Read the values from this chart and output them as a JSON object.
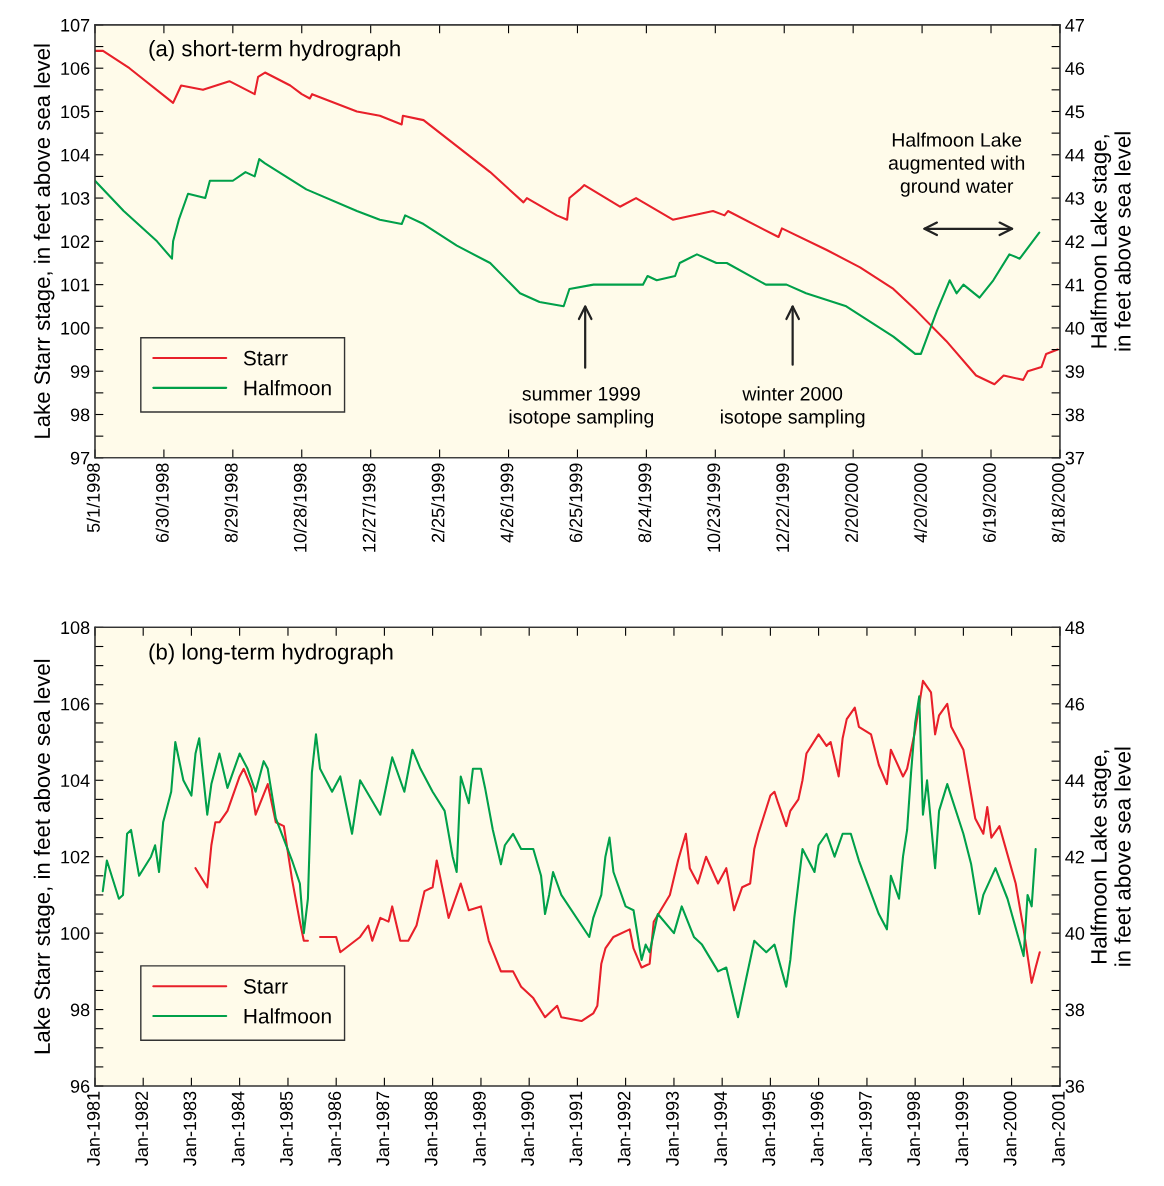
{
  "chart_data": [
    {
      "type": "line",
      "title": "(a) short-term hydrograph",
      "ylabel": "Lake Starr stage, in feet above sea level",
      "y2label": "Halfmoon Lake stage,\nin feet above sea level",
      "legend": "bottom left",
      "xlim": [
        "1998-05-01",
        "2000-08-18"
      ],
      "xticks": [
        {
          "value": "1998-05-01",
          "label": "5/1/1998"
        },
        {
          "value": "1998-06-30",
          "label": "6/30/1998"
        },
        {
          "value": "1998-08-29",
          "label": "8/29/1998"
        },
        {
          "value": "1998-10-28",
          "label": "10/28/1998"
        },
        {
          "value": "1998-12-27",
          "label": "12/27/1998"
        },
        {
          "value": "1999-02-25",
          "label": "2/25/1999"
        },
        {
          "value": "1999-04-26",
          "label": "4/26/1999"
        },
        {
          "value": "1999-06-25",
          "label": "6/25/1999"
        },
        {
          "value": "1999-08-24",
          "label": "8/24/1999"
        },
        {
          "value": "1999-10-23",
          "label": "10/23/1999"
        },
        {
          "value": "1999-12-22",
          "label": "12/22/1999"
        },
        {
          "value": "2000-02-20",
          "label": "2/20/2000"
        },
        {
          "value": "2000-04-20",
          "label": "4/20/2000"
        },
        {
          "value": "2000-06-19",
          "label": "6/19/2000"
        },
        {
          "value": "2000-08-18",
          "label": "8/18/2000"
        }
      ],
      "ylim": [
        97,
        107
      ],
      "yticks": [
        97,
        {
          "value": 97.5,
          "label": null
        },
        98,
        {
          "value": 98.5,
          "label": null
        },
        99,
        {
          "value": 99.5,
          "label": null
        },
        100,
        {
          "value": 100.5,
          "label": null
        },
        101,
        {
          "value": 101.5,
          "label": null
        },
        102,
        {
          "value": 102.5,
          "label": null
        },
        103,
        {
          "value": 103.5,
          "label": null
        },
        104,
        {
          "value": 104.5,
          "label": null
        },
        105,
        {
          "value": 105.5,
          "label": null
        },
        106,
        {
          "value": 106.5,
          "label": null
        },
        107
      ],
      "y2lim": [
        37,
        47
      ],
      "y2ticks": [
        37,
        {
          "value": 37.5,
          "label": null
        },
        38,
        {
          "value": 38.5,
          "label": null
        },
        39,
        {
          "value": 39.5,
          "label": null
        },
        40,
        {
          "value": 40.5,
          "label": null
        },
        41,
        {
          "value": 41.5,
          "label": null
        },
        42,
        {
          "value": 42.5,
          "label": null
        },
        43,
        {
          "value": 43.5,
          "label": null
        },
        44,
        {
          "value": 44.5,
          "label": null
        },
        45,
        {
          "value": 45.5,
          "label": null
        },
        46,
        {
          "value": 46.5,
          "label": null
        },
        47
      ],
      "series": [
        {
          "name": "Starr",
          "color": "#e8202a",
          "x": [
            "1998-05-01",
            "1998-05-08",
            "1998-05-31",
            "1998-07-08",
            "1998-07-15",
            "1998-08-03",
            "1998-08-26",
            "1998-09-17",
            "1998-09-20",
            "1998-09-26",
            "1998-10-18",
            "1998-10-28",
            "1998-11-04",
            "1998-11-06",
            "1998-12-15",
            "1999-01-04",
            "1999-01-23",
            "1999-01-24",
            "1999-02-11",
            "1999-03-12",
            "1999-04-10",
            "1999-05-09",
            "1999-05-12",
            "1999-06-07",
            "1999-06-16",
            "1999-06-18",
            "1999-06-27",
            "1999-07-01",
            "1999-08-01",
            "1999-08-15",
            "1999-09-16",
            "1999-10-21",
            "1999-10-31",
            "1999-11-03",
            "1999-12-17",
            "1999-12-20",
            "2000-01-28",
            "2000-02-26",
            "2000-03-26",
            "2000-04-15",
            "2000-05-11",
            "2000-06-06",
            "2000-06-22",
            "2000-06-30",
            "2000-07-17",
            "2000-07-21",
            "2000-08-02",
            "2000-08-06",
            "2000-08-16"
          ],
          "values": [
            106.4,
            106.4,
            106.0,
            105.2,
            105.6,
            105.5,
            105.7,
            105.4,
            105.8,
            105.9,
            105.6,
            105.4,
            105.3,
            105.4,
            105.0,
            104.9,
            104.7,
            104.9,
            104.8,
            104.2,
            103.6,
            102.9,
            103.0,
            102.6,
            102.5,
            103.0,
            103.2,
            103.3,
            102.8,
            103.0,
            102.5,
            102.7,
            102.6,
            102.7,
            102.1,
            102.3,
            101.8,
            101.4,
            100.9,
            100.4,
            99.7,
            98.9,
            98.7,
            98.9,
            98.8,
            99.0,
            99.1,
            99.4,
            99.5
          ]
        },
        {
          "name": "Halfmoon",
          "color": "#00a04a",
          "axis": "y2",
          "x": [
            "1998-05-01",
            "1998-05-26",
            "1998-06-24",
            "1998-07-07",
            "1998-07-08",
            "1998-07-13",
            "1998-07-21",
            "1998-08-05",
            "1998-08-09",
            "1998-08-29",
            "1998-09-09",
            "1998-09-17",
            "1998-09-21",
            "1998-09-26",
            "1998-11-01",
            "1998-12-15",
            "1999-01-04",
            "1999-01-23",
            "1999-01-26",
            "1999-02-11",
            "1999-03-12",
            "1999-04-10",
            "1999-05-06",
            "1999-05-23",
            "1999-06-13",
            "1999-06-18",
            "1999-07-09",
            "1999-08-02",
            "1999-08-21",
            "1999-08-25",
            "1999-09-02",
            "1999-09-18",
            "1999-09-22",
            "1999-10-07",
            "1999-10-24",
            "1999-11-02",
            "1999-12-06",
            "1999-12-24",
            "2000-01-10",
            "2000-02-14",
            "2000-03-26",
            "2000-04-14",
            "2000-04-19",
            "2000-05-03",
            "2000-05-14",
            "2000-05-20",
            "2000-05-26",
            "2000-06-09",
            "2000-06-21",
            "2000-07-05",
            "2000-07-14",
            "2000-07-31"
          ],
          "values": [
            43.4,
            42.7,
            42.0,
            41.6,
            42.0,
            42.5,
            43.1,
            43.0,
            43.4,
            43.4,
            43.6,
            43.5,
            43.9,
            43.8,
            43.2,
            42.7,
            42.5,
            42.4,
            42.6,
            42.4,
            41.9,
            41.5,
            40.8,
            40.6,
            40.5,
            40.9,
            41.0,
            41.0,
            41.0,
            41.2,
            41.1,
            41.2,
            41.5,
            41.7,
            41.5,
            41.5,
            41.0,
            41.0,
            40.8,
            40.5,
            39.8,
            39.4,
            39.4,
            40.4,
            41.1,
            40.8,
            41.0,
            40.7,
            41.1,
            41.7,
            41.6,
            42.2
          ]
        }
      ],
      "annotations": [
        "summer 1999\nisotope sampling",
        "winter 2000\nisotope sampling",
        "Halfmoon Lake\naugmented with\nground water"
      ]
    },
    {
      "type": "line",
      "title": "(b) long-term hydrograph",
      "ylabel": "Lake Starr stage, in feet above sea level",
      "y2label": "Halfmoon Lake stage,\nin feet above sea level",
      "legend": "bottom left",
      "xlim": [
        "1981-01",
        "2001-01"
      ],
      "xticks": [
        {
          "value": "1981-01",
          "label": "Jan-1981"
        },
        {
          "value": "1982-01",
          "label": "Jan-1982"
        },
        {
          "value": "1983-01",
          "label": "Jan-1983"
        },
        {
          "value": "1984-01",
          "label": "Jan-1984"
        },
        {
          "value": "1985-01",
          "label": "Jan-1985"
        },
        {
          "value": "1986-01",
          "label": "Jan-1986"
        },
        {
          "value": "1987-01",
          "label": "Jan-1987"
        },
        {
          "value": "1988-01",
          "label": "Jan-1988"
        },
        {
          "value": "1989-01",
          "label": "Jan-1989"
        },
        {
          "value": "1990-01",
          "label": "Jan-1990"
        },
        {
          "value": "1991-01",
          "label": "Jan-1991"
        },
        {
          "value": "1992-01",
          "label": "Jan-1992"
        },
        {
          "value": "1993-01",
          "label": "Jan-1993"
        },
        {
          "value": "1994-01",
          "label": "Jan-1994"
        },
        {
          "value": "1995-01",
          "label": "Jan-1995"
        },
        {
          "value": "1996-01",
          "label": "Jan-1996"
        },
        {
          "value": "1997-01",
          "label": "Jan-1997"
        },
        {
          "value": "1998-01",
          "label": "Jan-1998"
        },
        {
          "value": "1999-01",
          "label": "Jan-1999"
        },
        {
          "value": "2000-01",
          "label": "Jan-2000"
        },
        {
          "value": "2001-01",
          "label": "Jan-2001"
        }
      ],
      "ylim": [
        96,
        108
      ],
      "yticks": [
        96,
        {
          "value": 96.5,
          "label": null
        },
        {
          "value": 97,
          "label": null
        },
        {
          "value": 97.5,
          "label": null
        },
        98,
        {
          "value": 98.5,
          "label": null
        },
        {
          "value": 99,
          "label": null
        },
        {
          "value": 99.5,
          "label": null
        },
        100,
        {
          "value": 100.5,
          "label": null
        },
        {
          "value": 101,
          "label": null
        },
        {
          "value": 101.5,
          "label": null
        },
        102,
        {
          "value": 102.5,
          "label": null
        },
        {
          "value": 103,
          "label": null
        },
        {
          "value": 103.5,
          "label": null
        },
        104,
        {
          "value": 104.5,
          "label": null
        },
        {
          "value": 105,
          "label": null
        },
        {
          "value": 105.5,
          "label": null
        },
        106,
        {
          "value": 106.5,
          "label": null
        },
        {
          "value": 107,
          "label": null
        },
        {
          "value": 107.5,
          "label": null
        },
        108
      ],
      "y2lim": [
        36,
        48
      ],
      "y2ticks": [
        36,
        {
          "value": 36.5,
          "label": null
        },
        {
          "value": 37,
          "label": null
        },
        {
          "value": 37.5,
          "label": null
        },
        38,
        {
          "value": 38.5,
          "label": null
        },
        {
          "value": 39,
          "label": null
        },
        {
          "value": 39.5,
          "label": null
        },
        40,
        {
          "value": 40.5,
          "label": null
        },
        {
          "value": 41,
          "label": null
        },
        {
          "value": 41.5,
          "label": null
        },
        42,
        {
          "value": 42.5,
          "label": null
        },
        {
          "value": 43,
          "label": null
        },
        {
          "value": 43.5,
          "label": null
        },
        44,
        {
          "value": 44.5,
          "label": null
        },
        {
          "value": 45,
          "label": null
        },
        {
          "value": 45.5,
          "label": null
        },
        46,
        {
          "value": 46.5,
          "label": null
        },
        {
          "value": 47,
          "label": null
        },
        {
          "value": 47.5,
          "label": null
        },
        48
      ],
      "series": [
        {
          "name": "Starr",
          "color": "#e8202a",
          "x": [
            "1983-02",
            "1983-05",
            "1983-06",
            "1983-07",
            "1983-08",
            "1983-10",
            "1984-01",
            "1984-02",
            "1984-04",
            "1984-05",
            "1984-08",
            "1984-10",
            "1984-12",
            "1985-02",
            "1985-04",
            "1985-05",
            "1985-06",
            "1985-07",
            "1985-09",
            "1986-01",
            "1986-02",
            "1986-07",
            "1986-09",
            "1986-10",
            "1986-12",
            "1987-02",
            "1987-03",
            "1987-05",
            "1987-07",
            "1987-09",
            "1987-11",
            "1988-01",
            "1988-02",
            "1988-05",
            "1988-06",
            "1988-08",
            "1988-10",
            "1989-01",
            "1989-03",
            "1989-06",
            "1989-09",
            "1989-11",
            "1990-02",
            "1990-05",
            "1990-08",
            "1990-09",
            "1991-02",
            "1991-05",
            "1991-06",
            "1991-07",
            "1991-08",
            "1991-10",
            "1992-02",
            "1992-03",
            "1992-05",
            "1992-07",
            "1992-08",
            "1992-12",
            "1993-02",
            "1993-04",
            "1993-05",
            "1993-07",
            "1993-09",
            "1993-12",
            "1994-02",
            "1994-04",
            "1994-06",
            "1994-08",
            "1994-09",
            "1994-10",
            "1995-01",
            "1995-02",
            "1995-03",
            "1995-05",
            "1995-06",
            "1995-08",
            "1995-09",
            "1995-10",
            "1996-01",
            "1996-03",
            "1996-04",
            "1996-06",
            "1996-07",
            "1996-08",
            "1996-10",
            "1996-11",
            "1997-02",
            "1997-04",
            "1997-06",
            "1997-07",
            "1997-10",
            "1997-11",
            "1998-01",
            "1998-03",
            "1998-05",
            "1998-06",
            "1998-07",
            "1998-09",
            "1998-10",
            "1999-01",
            "1999-04",
            "1999-06",
            "1999-07",
            "1999-08",
            "1999-10",
            "2000-02",
            "2000-04",
            "2000-06",
            "2000-07",
            "2000-08"
          ],
          "values": [
            101.7,
            101.2,
            102.3,
            102.9,
            102.9,
            103.2,
            104.1,
            104.3,
            103.8,
            103.1,
            103.9,
            102.9,
            102.8,
            101.4,
            100.3,
            99.8,
            99.8,
            null,
            99.9,
            99.9,
            99.5,
            99.9,
            100.2,
            99.8,
            100.4,
            100.3,
            100.7,
            99.8,
            99.8,
            100.2,
            101.1,
            101.2,
            101.9,
            100.4,
            100.7,
            101.3,
            100.6,
            100.7,
            99.8,
            99.0,
            99.0,
            98.6,
            98.3,
            97.8,
            98.1,
            97.8,
            97.7,
            97.9,
            98.1,
            99.2,
            99.6,
            99.9,
            100.1,
            99.6,
            99.1,
            99.2,
            100.3,
            101.0,
            101.9,
            102.6,
            101.7,
            101.3,
            102.0,
            101.3,
            101.7,
            100.6,
            101.2,
            101.3,
            102.2,
            102.6,
            103.6,
            103.7,
            103.4,
            102.8,
            103.2,
            103.5,
            104.0,
            104.7,
            105.2,
            104.9,
            105.0,
            104.1,
            105.1,
            105.6,
            105.9,
            105.4,
            105.2,
            104.4,
            103.9,
            104.8,
            104.1,
            104.3,
            105.3,
            106.6,
            106.3,
            105.2,
            105.7,
            106.0,
            105.4,
            104.8,
            103.0,
            102.6,
            103.3,
            102.5,
            102.8,
            101.3,
            100.1,
            98.7,
            99.1,
            99.5
          ]
        },
        {
          "name": "Halfmoon",
          "color": "#00a04a",
          "axis": "y2",
          "x": [
            "1981-03",
            "1981-04",
            "1981-07",
            "1981-08",
            "1981-09",
            "1981-10",
            "1981-12",
            "1982-03",
            "1982-04",
            "1982-05",
            "1982-06",
            "1982-08",
            "1982-09",
            "1982-11",
            "1983-01",
            "1983-02",
            "1983-03",
            "1983-05",
            "1983-06",
            "1983-08",
            "1983-10",
            "1984-01",
            "1984-03",
            "1984-05",
            "1984-07",
            "1984-08",
            "1984-10",
            "1985-02",
            "1985-04",
            "1985-05",
            "1985-06",
            "1985-07",
            "1985-08",
            "1985-09",
            "1985-12",
            "1986-02",
            "1986-05",
            "1986-07",
            "1986-12",
            "1987-03",
            "1987-06",
            "1987-08",
            "1987-10",
            "1988-01",
            "1988-04",
            "1988-06",
            "1988-07",
            "1988-08",
            "1988-10",
            "1988-11",
            "1989-01",
            "1989-02",
            "1989-04",
            "1989-06",
            "1989-07",
            "1989-09",
            "1989-11",
            "1990-02",
            "1990-04",
            "1990-05",
            "1990-06",
            "1990-07",
            "1990-09",
            "1991-04",
            "1991-05",
            "1991-07",
            "1991-08",
            "1991-09",
            "1991-10",
            "1992-01",
            "1992-03",
            "1992-05",
            "1992-06",
            "1992-07",
            "1992-09",
            "1993-01",
            "1993-03",
            "1993-06",
            "1993-08",
            "1993-12",
            "1994-02",
            "1994-05",
            "1994-07",
            "1994-09",
            "1994-12",
            "1995-02",
            "1995-05",
            "1995-06",
            "1995-07",
            "1995-09",
            "1995-12",
            "1996-01",
            "1996-03",
            "1996-05",
            "1996-07",
            "1996-09",
            "1996-11",
            "1997-04",
            "1997-06",
            "1997-07",
            "1997-09",
            "1997-10",
            "1997-11",
            "1997-12",
            "1998-01",
            "1998-02",
            "1998-03",
            "1998-04",
            "1998-06",
            "1998-07",
            "1998-09",
            "1999-01",
            "1999-03",
            "1999-05",
            "1999-06",
            "1999-09",
            "1999-12",
            "2000-04",
            "2000-05",
            "2000-06",
            "2000-07"
          ],
          "values": [
            41.1,
            41.9,
            40.9,
            41.0,
            42.6,
            42.7,
            41.5,
            42.0,
            42.3,
            41.6,
            42.9,
            43.7,
            45.0,
            44.0,
            43.6,
            44.7,
            45.1,
            43.1,
            43.9,
            44.7,
            43.8,
            44.7,
            44.3,
            43.7,
            44.5,
            44.3,
            43.0,
            41.9,
            41.3,
            40.0,
            40.9,
            44.2,
            45.2,
            44.3,
            43.7,
            44.1,
            42.6,
            44.0,
            43.1,
            44.6,
            43.7,
            44.8,
            44.3,
            43.7,
            43.2,
            42.0,
            41.6,
            44.1,
            43.4,
            44.3,
            44.3,
            43.8,
            42.7,
            41.8,
            42.3,
            42.6,
            42.2,
            42.2,
            41.5,
            40.5,
            41.0,
            41.6,
            41.0,
            39.9,
            40.4,
            41.0,
            42.0,
            42.5,
            41.6,
            40.7,
            40.6,
            39.3,
            39.7,
            39.5,
            40.5,
            40.0,
            40.7,
            39.9,
            39.7,
            39.0,
            39.1,
            37.8,
            38.8,
            39.8,
            39.5,
            39.7,
            38.6,
            39.3,
            40.4,
            42.2,
            41.6,
            42.3,
            42.6,
            42.0,
            42.6,
            42.6,
            41.9,
            40.5,
            40.1,
            41.5,
            40.9,
            42.0,
            42.7,
            44.2,
            45.5,
            46.2,
            43.1,
            44.0,
            41.7,
            43.2,
            43.9,
            42.6,
            41.8,
            40.5,
            41.0,
            41.7,
            40.9,
            39.4,
            41.0,
            40.7,
            42.2
          ]
        }
      ]
    }
  ]
}
